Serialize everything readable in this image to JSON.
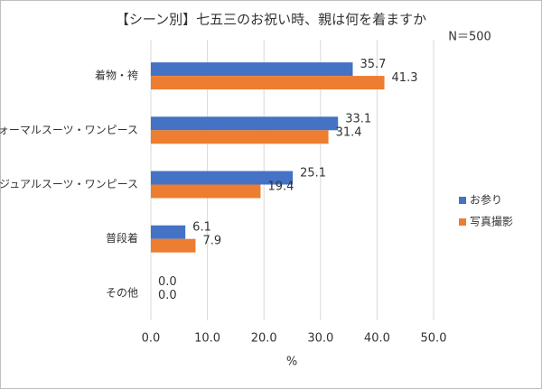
{
  "chart_data": {
    "type": "hbar",
    "title": "【シーン別】七五三のお祝い時、親は何を着ますか",
    "annotation": "N＝500",
    "x_label": "%",
    "categories": [
      "着物・袴",
      "フォーマルスーツ・ワンピース",
      "カジュアルスーツ・ワンピース",
      "普段着",
      "その他"
    ],
    "series": [
      {
        "name": "お参り",
        "color": "#4472c4",
        "values": [
          35.7,
          33.1,
          25.1,
          6.1,
          0
        ],
        "value_labels": [
          "35.7",
          "33.1",
          "25.1",
          "6.1",
          "0.0"
        ]
      },
      {
        "name": "写真撮影",
        "color": "#ed7d31",
        "values": [
          41.3,
          31.4,
          19.4,
          7.9,
          0
        ],
        "value_labels": [
          "41.3",
          "31.4",
          "19.4",
          "7.9",
          "0.0"
        ]
      }
    ],
    "xlim": [
      0,
      50
    ],
    "xticks": [
      {
        "value": 0,
        "label": "0.0"
      },
      {
        "value": 10,
        "label": "10.0"
      },
      {
        "value": 20,
        "label": "20.0"
      },
      {
        "value": 30,
        "label": "30.0"
      },
      {
        "value": 40,
        "label": "40.0"
      },
      {
        "value": 50,
        "label": "50.0"
      }
    ],
    "grid": true,
    "legend": "right"
  }
}
